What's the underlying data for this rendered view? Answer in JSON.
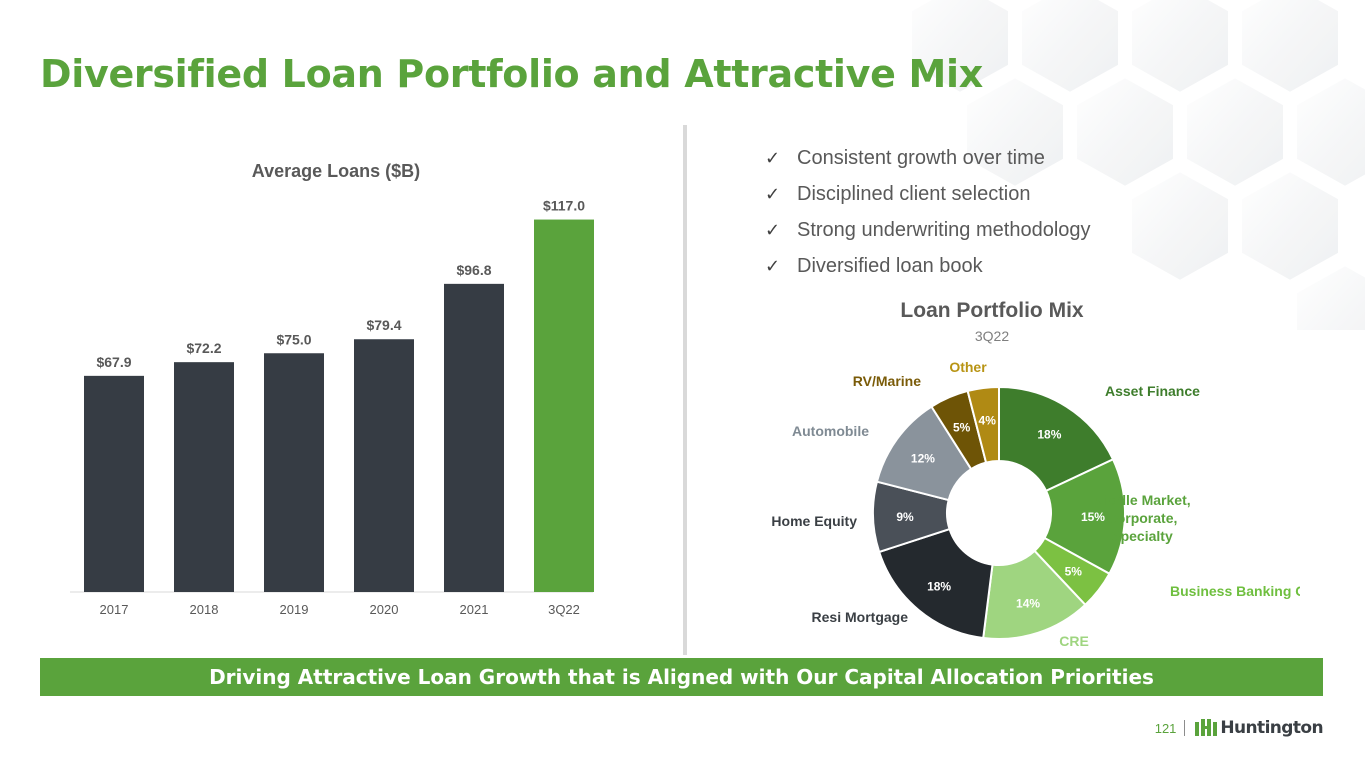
{
  "page": {
    "title": "Diversified Loan Portfolio and Attractive Mix",
    "banner": "Driving Attractive Loan Growth that is Aligned with Our Capital Allocation Priorities",
    "page_number": "121",
    "logo_text": "Huntington"
  },
  "bullets": [
    {
      "icon": "check-icon",
      "text": "Consistent growth over time"
    },
    {
      "icon": "check-icon",
      "text": "Disciplined client selection"
    },
    {
      "icon": "check-icon",
      "text": "Strong underwriting methodology"
    },
    {
      "icon": "check-icon",
      "text": "Diversified loan book"
    }
  ],
  "colors": {
    "brand_green": "#5aa33c",
    "bar_dark": "#363c44",
    "bar_highlight": "#5aa33c"
  },
  "chart_data": [
    {
      "type": "bar",
      "title": "Average Loans ($B)",
      "categories": [
        "2017",
        "2018",
        "2019",
        "2020",
        "2021",
        "3Q22"
      ],
      "values": [
        67.9,
        72.2,
        75.0,
        79.4,
        96.8,
        117.0
      ],
      "data_labels": [
        "$67.9",
        "$72.2",
        "$75.0",
        "$79.4",
        "$96.8",
        "$117.0"
      ],
      "bar_colors": [
        "#363c44",
        "#363c44",
        "#363c44",
        "#363c44",
        "#363c44",
        "#5aa33c"
      ],
      "ylim": [
        0,
        120
      ],
      "grid": false,
      "legend": "none"
    },
    {
      "type": "pie",
      "donut": true,
      "title": "Loan Portfolio Mix",
      "subtitle": "3Q22",
      "slices": [
        {
          "name": "Asset Finance",
          "value": 18,
          "label": "18%",
          "color": "#3e7d2c",
          "label_color": "#3e7d2c"
        },
        {
          "name": "Middle Market, Corporate, Specialty",
          "value": 15,
          "label": "15%",
          "color": "#5aa33c",
          "label_color": "#5aa33c"
        },
        {
          "name": "Business Banking C&I",
          "value": 5,
          "label": "5%",
          "color": "#7cc142",
          "label_color": "#6fbf3f"
        },
        {
          "name": "CRE",
          "value": 14,
          "label": "14%",
          "color": "#9fd580",
          "label_color": "#9fd580"
        },
        {
          "name": "Resi Mortgage",
          "value": 18,
          "label": "18%",
          "color": "#24292e",
          "label_color": "#3a3f44"
        },
        {
          "name": "Home Equity",
          "value": 9,
          "label": "9%",
          "color": "#4a5058",
          "label_color": "#3a3f44"
        },
        {
          "name": "Automobile",
          "value": 12,
          "label": "12%",
          "color": "#8a939c",
          "label_color": "#7f8a93"
        },
        {
          "name": "RV/Marine",
          "value": 5,
          "label": "5%",
          "color": "#6e5406",
          "label_color": "#7a5b08"
        },
        {
          "name": "Other",
          "value": 4,
          "label": "4%",
          "color": "#b08a14",
          "label_color": "#b89414"
        }
      ]
    }
  ]
}
